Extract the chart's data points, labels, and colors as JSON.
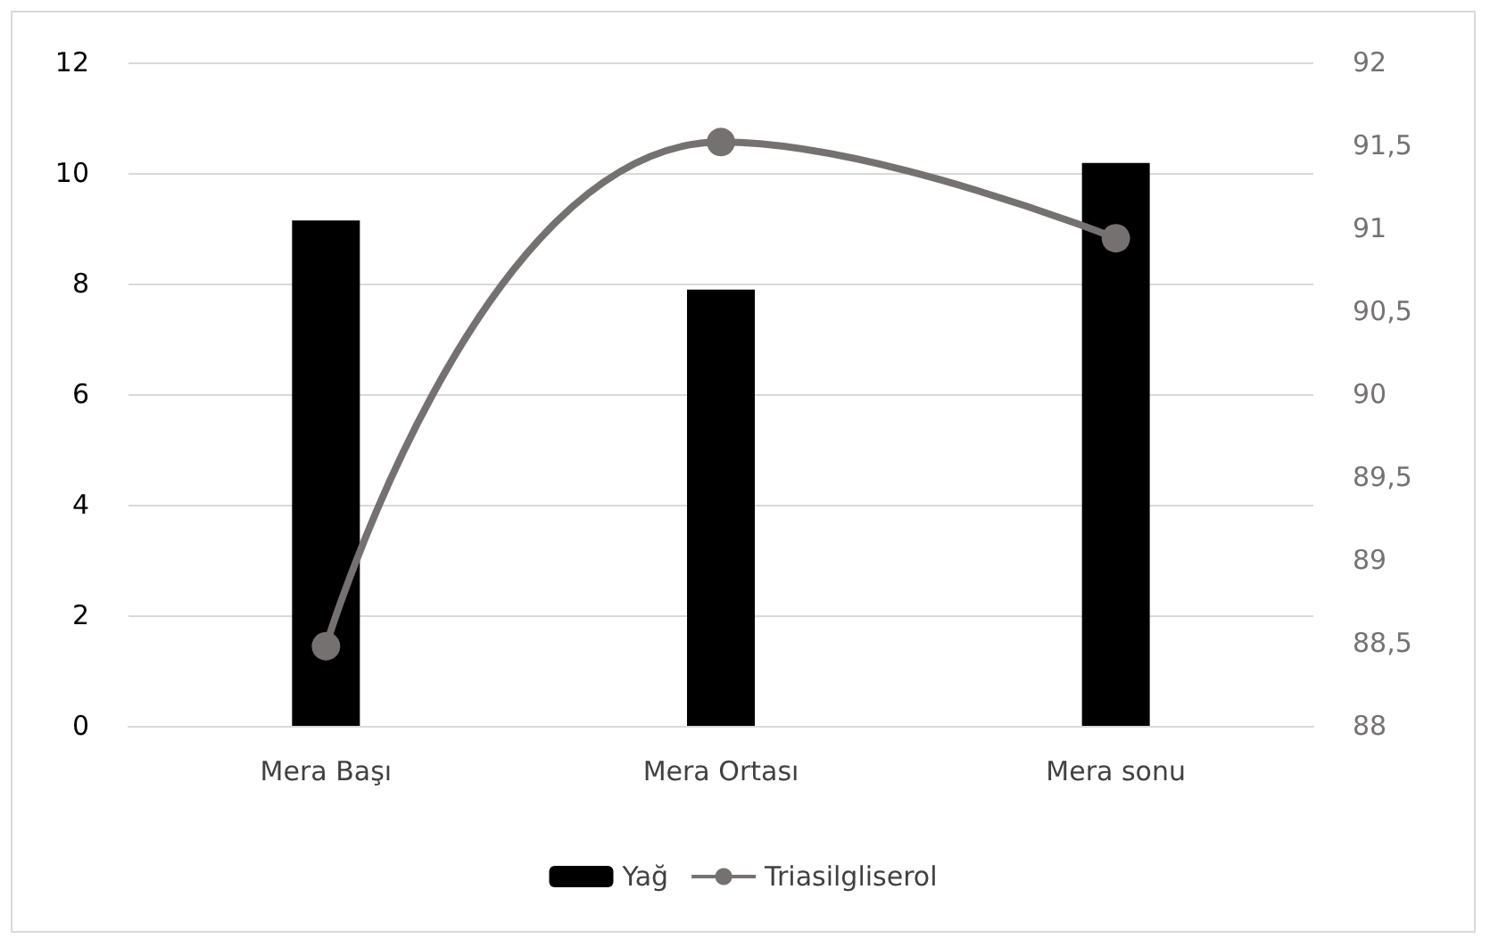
{
  "chart_data": {
    "type": "bar",
    "categories": [
      "Mera Başı",
      "Mera Ortası",
      "Mera sonu"
    ],
    "series": [
      {
        "name": "Yağ",
        "color": "#000000",
        "values": [
          9.14,
          7.89,
          10.18
        ]
      },
      {
        "name": "Triasilgliserol",
        "type": "line",
        "axis": "y2",
        "color": "#767171",
        "marker": "circle",
        "values": [
          88.48,
          91.52,
          90.94
        ]
      }
    ],
    "ylim": [
      0,
      12
    ],
    "yticks": [
      0,
      2,
      4,
      6,
      8,
      10,
      12
    ],
    "y2lim": [
      88,
      92
    ],
    "y2ticks": [
      88,
      {
        "value": 88.5,
        "label": "88,5"
      },
      89,
      {
        "value": 89.5,
        "label": "89,5"
      },
      90,
      {
        "value": 90.5,
        "label": "90,5"
      },
      91,
      {
        "value": 91.5,
        "label": "91,5"
      },
      92
    ],
    "grid": "y",
    "legend": "bottom"
  }
}
